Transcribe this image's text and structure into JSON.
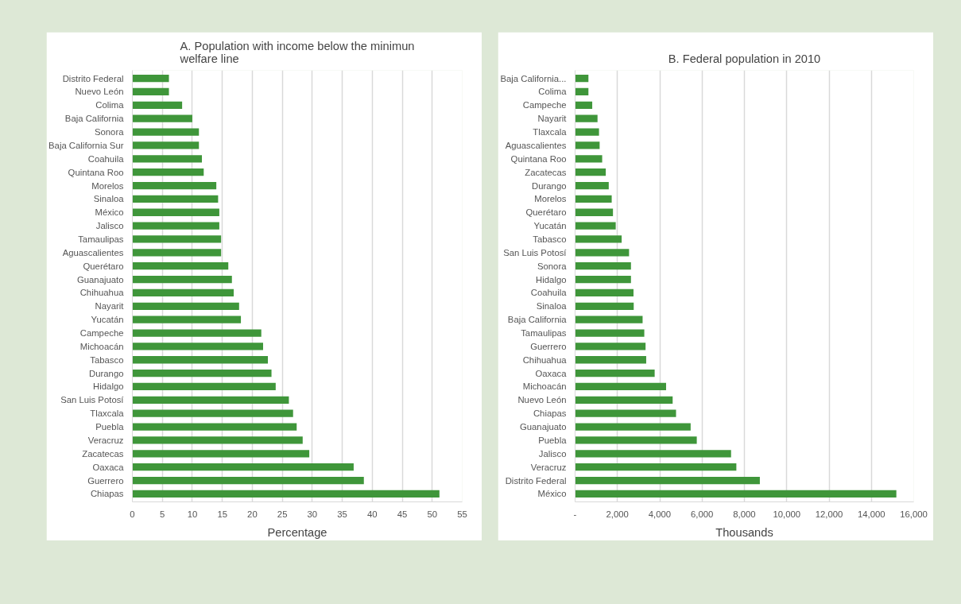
{
  "chart_data": [
    {
      "type": "bar",
      "orientation": "horizontal",
      "title": "A. Population with income below the minimun welfare line",
      "xlabel": "Percentage",
      "color": "#3f963a",
      "grid": "x",
      "categories": [
        "Distrito Federal",
        "Nuevo León",
        "Colima",
        "Baja California",
        "Sonora",
        "Baja California Sur",
        "Coahuila",
        "Quintana Roo",
        "Morelos",
        "Sinaloa",
        "México",
        "Jalisco",
        "Tamaulipas",
        "Aguascalientes",
        "Querétaro",
        "Guanajuato",
        "Chihuahua",
        "Nayarit",
        "Yucatán",
        "Campeche",
        "Michoacán",
        "Tabasco",
        "Durango",
        "Hidalgo",
        "San Luis Potosí",
        "Tlaxcala",
        "Puebla",
        "Veracruz",
        "Zacatecas",
        "Oaxaca",
        "Guerrero",
        "Chiapas"
      ],
      "values": [
        6.1,
        6.1,
        8.3,
        10.0,
        11.1,
        11.1,
        11.6,
        11.9,
        14.0,
        14.3,
        14.5,
        14.5,
        14.8,
        14.8,
        16.0,
        16.6,
        16.9,
        17.8,
        18.1,
        21.5,
        21.8,
        22.6,
        23.2,
        23.9,
        26.1,
        26.8,
        27.4,
        28.4,
        29.5,
        36.9,
        38.6,
        51.2
      ],
      "xlim": [
        0,
        55
      ],
      "xticks": [
        0,
        5,
        10,
        15,
        20,
        25,
        30,
        35,
        40,
        45,
        50,
        55
      ]
    },
    {
      "type": "bar",
      "orientation": "horizontal",
      "title": "B. Federal population in 2010",
      "xlabel": "Thousands",
      "color": "#3f963a",
      "grid": "x",
      "categories": [
        "Baja California...",
        "Colima",
        "Campeche",
        "Nayarit",
        "Tlaxcala",
        "Aguascalientes",
        "Quintana Roo",
        "Zacatecas",
        "Durango",
        "Morelos",
        "Querétaro",
        "Yucatán",
        "Tabasco",
        "San Luis Potosí",
        "Sonora",
        "Hidalgo",
        "Coahuila",
        "Sinaloa",
        "Baja California",
        "Tamaulipas",
        "Guerrero",
        "Chihuahua",
        "Oaxaca",
        "Michoacán",
        "Nuevo León",
        "Chiapas",
        "Guanajuato",
        "Puebla",
        "Jalisco",
        "Veracruz",
        "Distrito Federal",
        "México"
      ],
      "values": [
        630,
        630,
        810,
        1060,
        1130,
        1160,
        1280,
        1450,
        1590,
        1730,
        1790,
        1920,
        2200,
        2550,
        2640,
        2640,
        2760,
        2770,
        3190,
        3270,
        3330,
        3360,
        3760,
        4300,
        4610,
        4770,
        5460,
        5750,
        7370,
        7620,
        8730,
        15180
      ],
      "xlim": [
        0,
        16000
      ],
      "xticks": [
        {
          "value": 0,
          "label": "-"
        },
        {
          "value": 2000,
          "label": "2,000"
        },
        {
          "value": 4000,
          "label": "4,000"
        },
        {
          "value": 6000,
          "label": "6,000"
        },
        {
          "value": 8000,
          "label": "8,000"
        },
        {
          "value": 10000,
          "label": "10,000"
        },
        {
          "value": 12000,
          "label": "12,000"
        },
        {
          "value": 14000,
          "label": "14,000"
        },
        {
          "value": 16000,
          "label": "16,000"
        }
      ]
    }
  ]
}
